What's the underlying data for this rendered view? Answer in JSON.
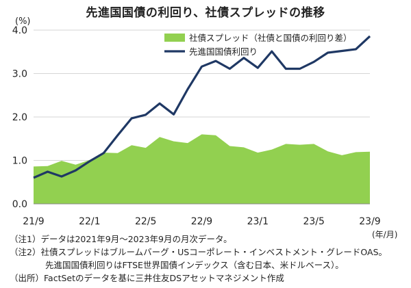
{
  "chart_data": {
    "type": "area+line",
    "title": "先進国国債の利回り、社債スプレッドの推移",
    "ylabel": "(%)",
    "xunit": "(年/月)",
    "ylim": [
      0.0,
      4.0
    ],
    "yticks": [
      "0.0",
      "1.0",
      "2.0",
      "3.0",
      "4.0"
    ],
    "xticks": [
      {
        "label": "21/9",
        "index": 0
      },
      {
        "label": "22/1",
        "index": 4
      },
      {
        "label": "22/5",
        "index": 8
      },
      {
        "label": "22/9",
        "index": 12
      },
      {
        "label": "23/1",
        "index": 16
      },
      {
        "label": "23/5",
        "index": 20
      },
      {
        "label": "23/9",
        "index": 24
      }
    ],
    "categories": [
      "21/9",
      "21/10",
      "21/11",
      "21/12",
      "22/1",
      "22/2",
      "22/3",
      "22/4",
      "22/5",
      "22/6",
      "22/7",
      "22/8",
      "22/9",
      "22/10",
      "22/11",
      "22/12",
      "23/1",
      "23/2",
      "23/3",
      "23/4",
      "23/5",
      "23/6",
      "23/7",
      "23/8",
      "23/9"
    ],
    "series": [
      {
        "name": "社債スプレッド（社債と国債の利回り差）",
        "kind": "area",
        "color": "#92D050",
        "values": [
          0.86,
          0.87,
          0.99,
          0.9,
          1.01,
          1.18,
          1.17,
          1.35,
          1.29,
          1.54,
          1.44,
          1.4,
          1.6,
          1.58,
          1.33,
          1.3,
          1.18,
          1.25,
          1.38,
          1.36,
          1.38,
          1.21,
          1.12,
          1.19,
          1.2
        ]
      },
      {
        "name": "先進国国債利回り",
        "kind": "line",
        "color": "#1F3864",
        "values": [
          0.6,
          0.74,
          0.63,
          0.77,
          0.98,
          1.17,
          1.58,
          1.97,
          2.05,
          2.31,
          2.06,
          2.64,
          3.16,
          3.29,
          3.11,
          3.36,
          3.13,
          3.51,
          3.11,
          3.11,
          3.27,
          3.48,
          3.52,
          3.56,
          3.86
        ]
      }
    ]
  },
  "notes": {
    "note1": "（注1）データは2021年9月～2023年9月の月次データ。",
    "note2a": "（注2）社債スプレッドはブルームバーグ・USコーポレート・インベストメント・グレードOAS。",
    "note2b": "先進国国債利回りはFTSE世界国債インデックス（含む日本、米ドルベース）。",
    "source": "（出所）FactSetのデータを基に三井住友DSアセットマネジメント作成"
  }
}
